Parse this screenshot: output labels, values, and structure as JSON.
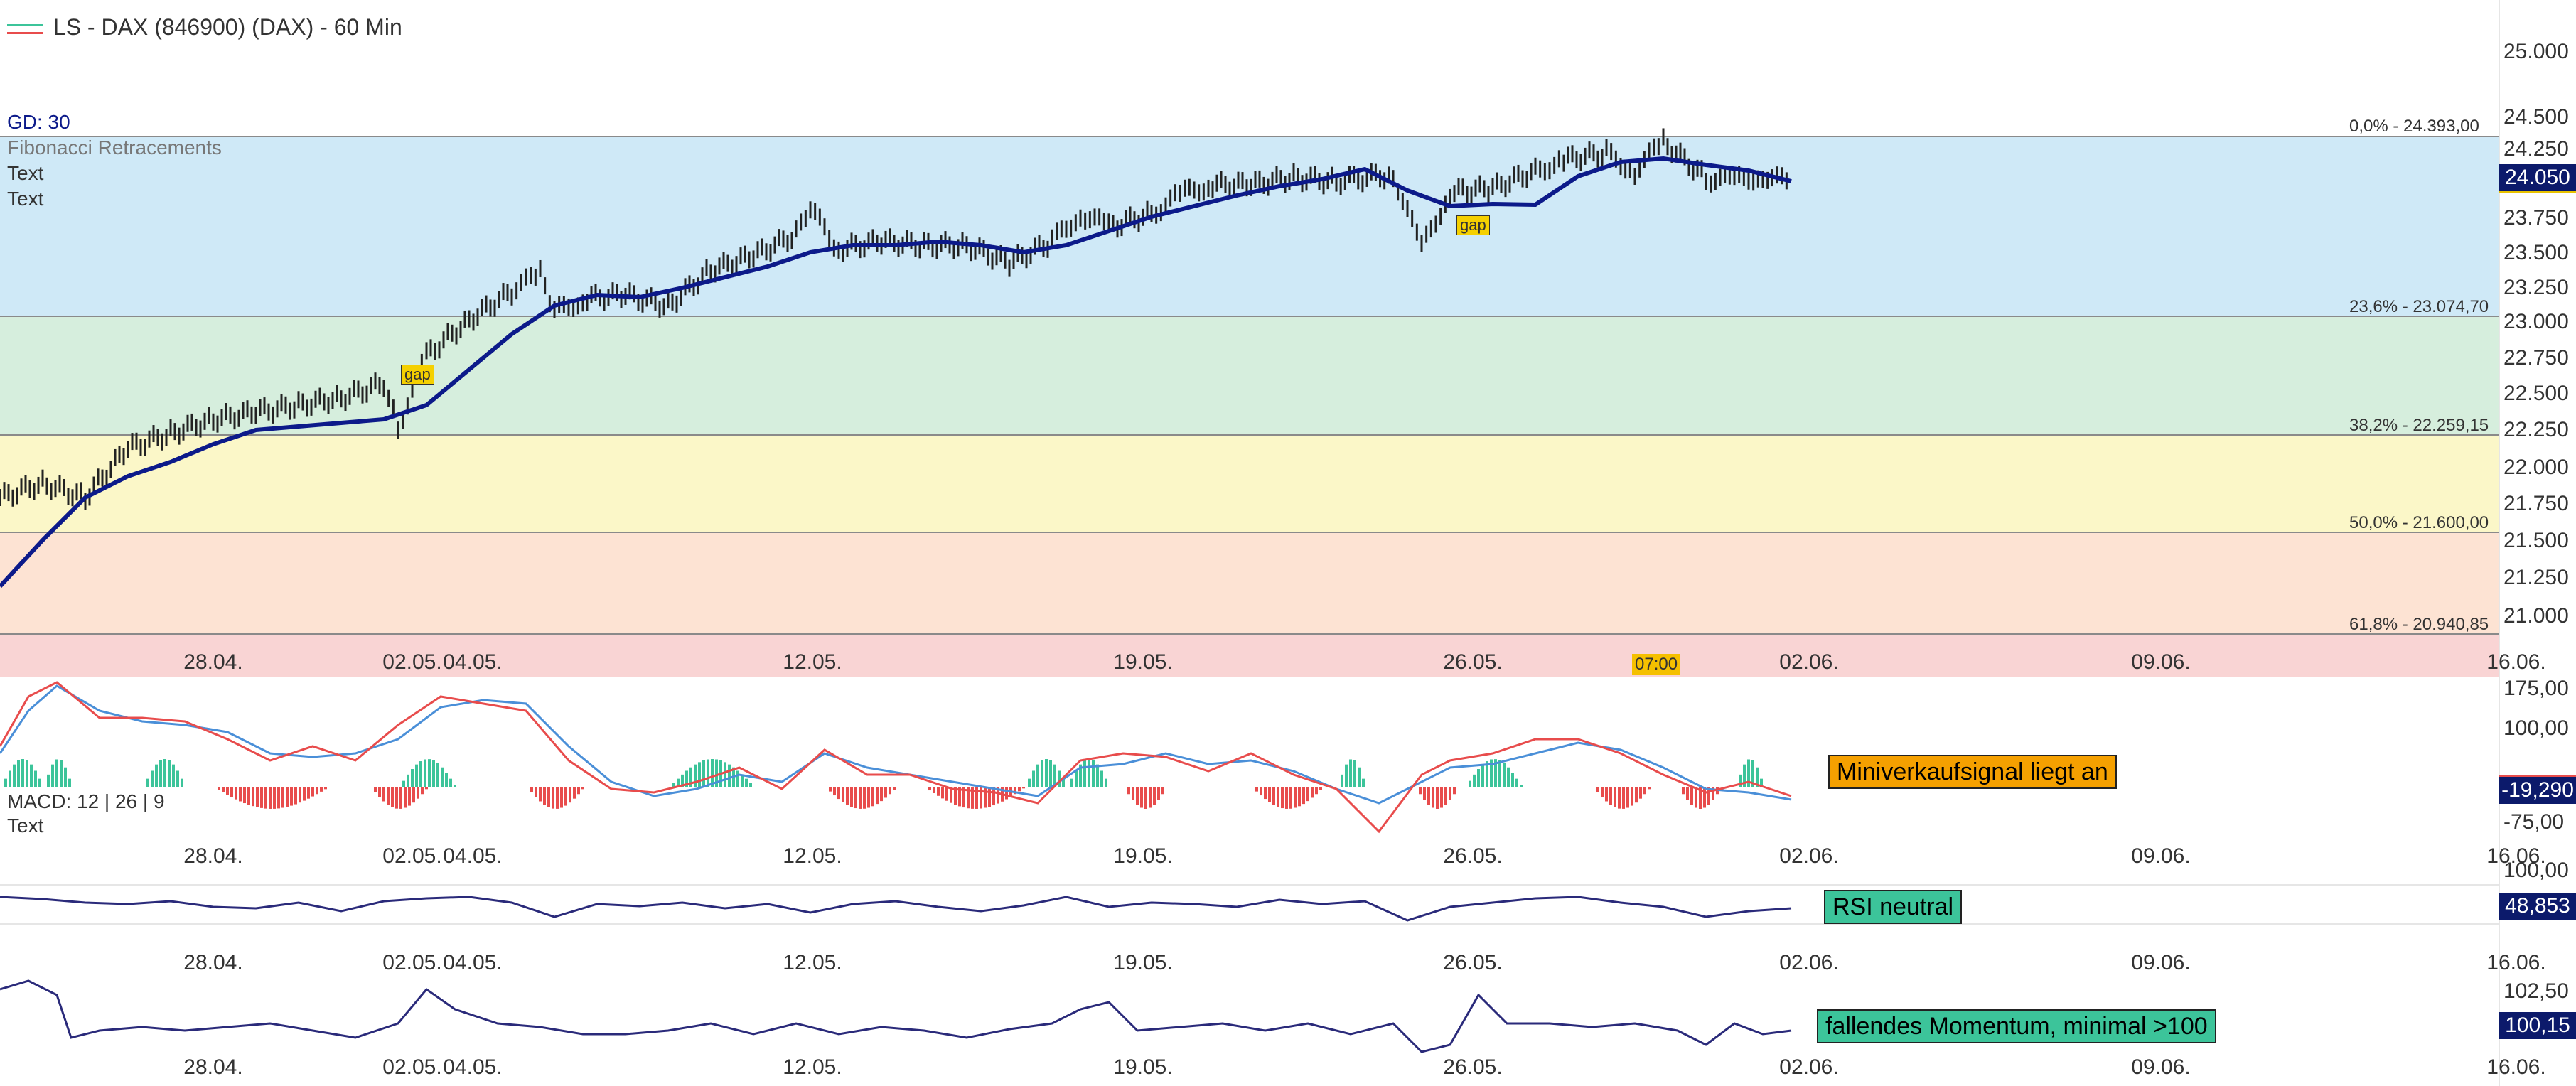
{
  "header": {
    "title": "LS - DAX (846900) (DAX) - 60 Min"
  },
  "main_panel": {
    "legend": [
      "GD: 30",
      "Fibonacci Retracements",
      "Text",
      "Text"
    ],
    "gap_label": "gap",
    "price_ticks": [
      "25.000",
      "24.500",
      "24.250",
      "24.000",
      "23.750",
      "23.500",
      "23.250",
      "23.000",
      "22.750",
      "22.500",
      "22.250",
      "22.000",
      "21.750",
      "21.500",
      "21.250",
      "21.000"
    ],
    "current_price": "24.050",
    "fib_levels": [
      {
        "label": "0,0% - 24.393,00",
        "value": 24393.0
      },
      {
        "label": "23,6% - 23.074,70",
        "value": 23074.7
      },
      {
        "label": "38,2% - 22.259,15",
        "value": 22259.15
      },
      {
        "label": "50,0% - 21.600,00",
        "value": 21600.0
      },
      {
        "label": "61,8% - 20.940,85",
        "value": 20940.85
      }
    ],
    "fib_colors": [
      "#cfe9f7",
      "#d6eedd",
      "#fbf7c8",
      "#fde3d3",
      "#f9d4d4"
    ],
    "time_marker": "07:00"
  },
  "x_labels": [
    "28.04.",
    "02.05.",
    "04.05.",
    "12.05.",
    "19.05.",
    "26.05.",
    "02.06.",
    "09.06.",
    "16.06."
  ],
  "macd_panel": {
    "legend": "MACD: 12 | 26 | 9",
    "legend2": "Text",
    "ticks": [
      "175,00",
      "100,00",
      "-75,00"
    ],
    "value": "-19,290",
    "annotation": "Miniverkaufsignal liegt an",
    "annotation_color": "#f5a000"
  },
  "rsi_panel": {
    "ticks": [
      "100,00"
    ],
    "value": "48,853",
    "annotation": "RSI neutral",
    "annotation_color": "#3cc49a"
  },
  "momentum_panel": {
    "ticks": [
      "102,50"
    ],
    "value": "100,15",
    "annotation": "fallendes Momentum, minimal >100",
    "annotation_color": "#3cc49a"
  },
  "colors": {
    "ma_line": "#0c1a8a",
    "price_box": "#0c1a6b",
    "candle": "#222222",
    "macd_up": "#3cc49a",
    "macd_down": "#e84c4c",
    "macd_line": "#4a8fd8",
    "signal_line": "#e84c4c",
    "osc_line": "#2a2a7a"
  }
}
